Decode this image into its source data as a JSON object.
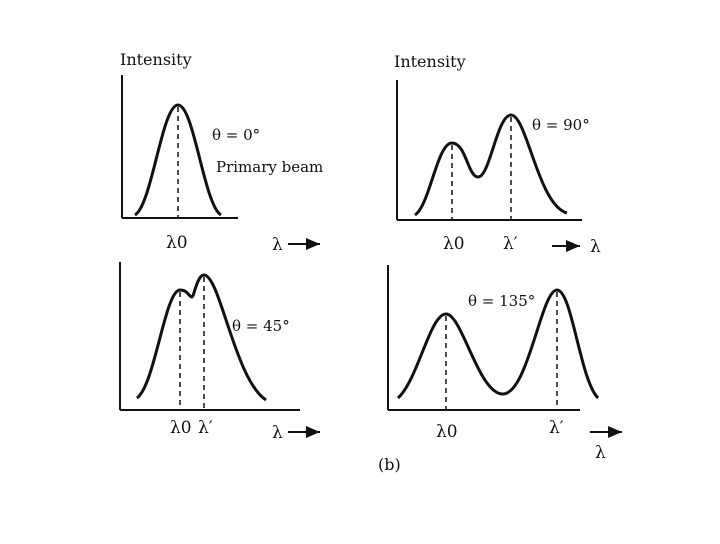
{
  "figure": {
    "panel_label": "(b)",
    "ink_color": "#111111"
  },
  "panels": [
    {
      "id": "p1",
      "y_axis_label": "Intensity",
      "angle_label": "θ = 0°",
      "note": "Primary beam",
      "peak_labels": [
        "λ0"
      ],
      "x_label": "λ"
    },
    {
      "id": "p2",
      "y_axis_label": "Intensity",
      "angle_label": "θ = 90°",
      "peak_labels": [
        "λ0",
        "λ′"
      ],
      "x_label": "λ"
    },
    {
      "id": "p3",
      "angle_label": "θ = 45°",
      "peak_labels": [
        "λ0",
        "λ′"
      ],
      "x_label": "λ"
    },
    {
      "id": "p4",
      "angle_label": "θ = 135°",
      "peak_labels": [
        "λ0",
        "λ′"
      ],
      "x_label": "λ"
    }
  ]
}
